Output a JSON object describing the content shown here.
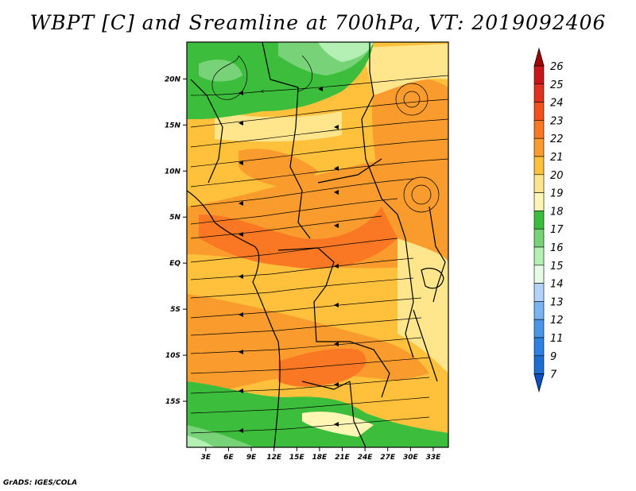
{
  "title": "WBPT [C] and Sreamline at 700hPa, VT: 2019092406",
  "credit": "GrADS: IGES/COLA",
  "map": {
    "lat_ticks": [
      {
        "label": "20N",
        "lat": 20
      },
      {
        "label": "15N",
        "lat": 15
      },
      {
        "label": "10N",
        "lat": 10
      },
      {
        "label": "5N",
        "lat": 5
      },
      {
        "label": "EQ",
        "lat": 0
      },
      {
        "label": "5S",
        "lat": -5
      },
      {
        "label": "10S",
        "lat": -10
      },
      {
        "label": "15S",
        "lat": -15
      }
    ],
    "lon_ticks": [
      {
        "label": "3E",
        "lon": 3
      },
      {
        "label": "6E",
        "lon": 6
      },
      {
        "label": "9E",
        "lon": 9
      },
      {
        "label": "12E",
        "lon": 12
      },
      {
        "label": "15E",
        "lon": 15
      },
      {
        "label": "18E",
        "lon": 18
      },
      {
        "label": "21E",
        "lon": 21
      },
      {
        "label": "24E",
        "lon": 24
      },
      {
        "label": "27E",
        "lon": 27
      },
      {
        "label": "30E",
        "lon": 30
      },
      {
        "label": "33E",
        "lon": 33
      }
    ],
    "lon_range": [
      0.5,
      35
    ],
    "lat_range": [
      -20,
      24
    ]
  },
  "colorbar": {
    "levels": [
      "26",
      "25",
      "24",
      "23",
      "22",
      "21",
      "20",
      "19",
      "18",
      "17",
      "16",
      "15",
      "14",
      "13",
      "12",
      "11",
      "9",
      "7"
    ],
    "colors": [
      "#a50000",
      "#c8161a",
      "#e0301e",
      "#f4501e",
      "#fa7823",
      "#fa9b2d",
      "#ffc03c",
      "#ffe68c",
      "#fff5b4",
      "#3cbe3c",
      "#78d278",
      "#b4f0b4",
      "#e6fae6",
      "#b4d2fa",
      "#78b4f0",
      "#4b96e6",
      "#2d82e1",
      "#1e6ed2",
      "#0a50c8"
    ]
  }
}
